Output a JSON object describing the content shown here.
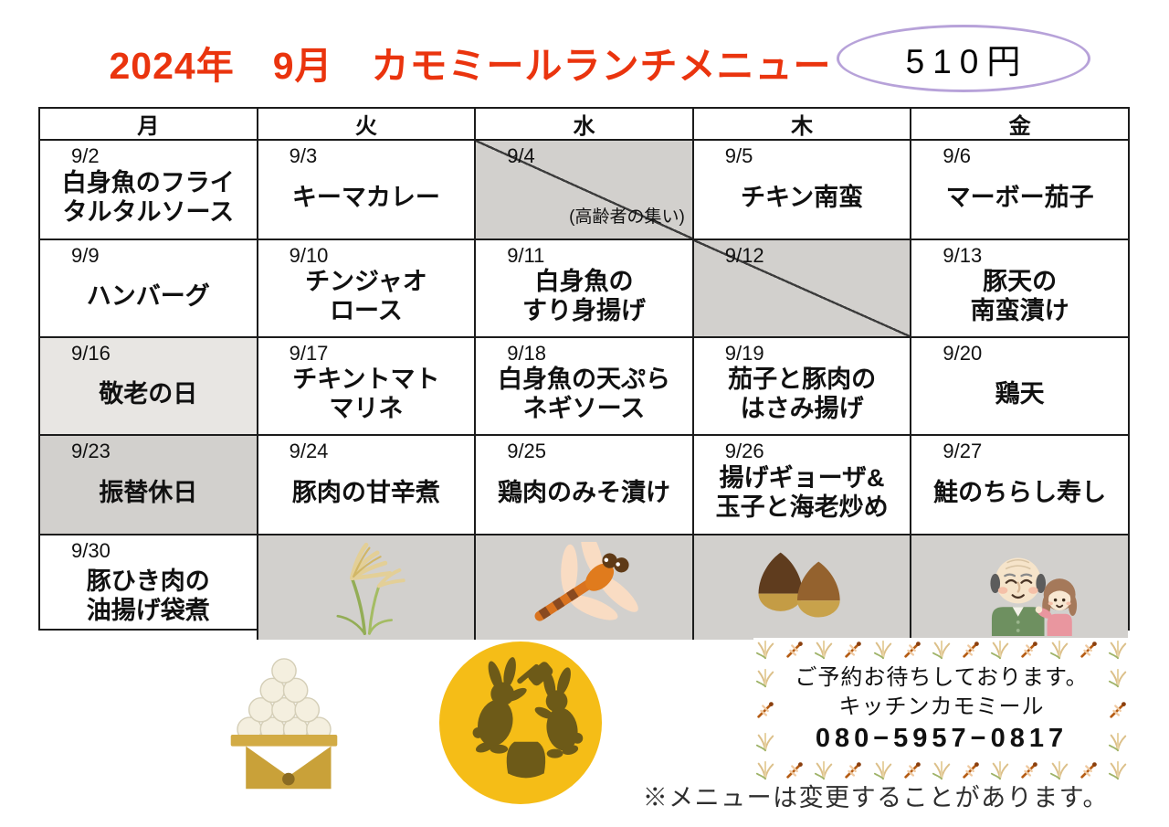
{
  "header": {
    "title": "2024年　9月　カモミールランチメニュー",
    "price": "510円"
  },
  "calendar": {
    "weekdays": [
      "月",
      "火",
      "水",
      "木",
      "金"
    ],
    "rows": [
      {
        "cells": [
          {
            "date": "9/2",
            "menu": "白身魚のフライ\nタルタルソース"
          },
          {
            "date": "9/3",
            "menu": "キーマカレー"
          },
          {
            "date": "9/4",
            "style": "gray",
            "diagonal": true,
            "note": "(高齢者の集い)"
          },
          {
            "date": "9/5",
            "menu": "チキン南蛮"
          },
          {
            "date": "9/6",
            "menu": "マーボー茄子"
          }
        ]
      },
      {
        "cells": [
          {
            "date": "9/9",
            "menu": "ハンバーグ"
          },
          {
            "date": "9/10",
            "menu": "チンジャオ\nロース"
          },
          {
            "date": "9/11",
            "menu": "白身魚の\nすり身揚げ"
          },
          {
            "date": "9/12",
            "style": "gray",
            "diagonal": true
          },
          {
            "date": "9/13",
            "menu": "豚天の\n南蛮漬け"
          }
        ]
      },
      {
        "cells": [
          {
            "date": "9/16",
            "menu": "敬老の日",
            "style": "lightgray"
          },
          {
            "date": "9/17",
            "menu": "チキントマト\nマリネ"
          },
          {
            "date": "9/18",
            "menu": "白身魚の天ぷら\nネギソース"
          },
          {
            "date": "9/19",
            "menu": "茄子と豚肉の\nはさみ揚げ"
          },
          {
            "date": "9/20",
            "menu": "鶏天"
          }
        ]
      },
      {
        "cells": [
          {
            "date": "9/23",
            "menu": "振替休日",
            "style": "gray"
          },
          {
            "date": "9/24",
            "menu": "豚肉の甘辛煮"
          },
          {
            "date": "9/25",
            "menu": "鶏肉のみそ漬け"
          },
          {
            "date": "9/26",
            "menu": "揚げギョーザ&\n玉子と海老炒め"
          },
          {
            "date": "9/27",
            "menu": "鮭のちらし寿し"
          }
        ]
      },
      {
        "cells": [
          {
            "date": "9/30",
            "menu": "豚ひき肉の\n油揚げ袋煮"
          },
          {
            "style": "gray",
            "icon": "pampas-grass"
          },
          {
            "style": "gray",
            "icon": "dragonfly"
          },
          {
            "style": "gray",
            "icon": "chestnuts"
          },
          {
            "style": "gray",
            "icon": "grandpa-and-grandchild"
          }
        ]
      }
    ]
  },
  "footer": {
    "illustrations": [
      "tsukimi-dango",
      "moon-rabbits"
    ],
    "reservation": {
      "line1": "ご予約お待ちしております。",
      "line2": "キッチンカモミール",
      "phone": "080−5957−0817"
    },
    "note": "※メニューは変更することがあります。"
  },
  "colors": {
    "title_red": "#ea340e",
    "oval_purple": "#b7a2d9",
    "cell_gray": "#d2d0cd",
    "cell_light_gray": "#e8e6e3",
    "moon_yellow": "#f5bd17",
    "rabbit_brown": "#6d5a18"
  }
}
